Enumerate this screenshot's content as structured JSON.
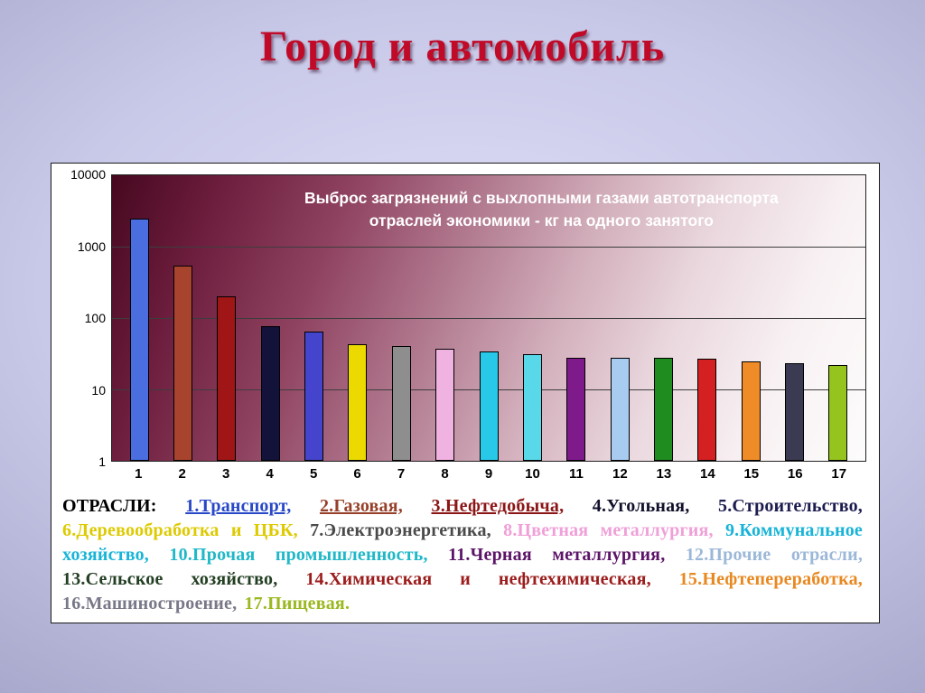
{
  "slide": {
    "title": "Город и автомобиль"
  },
  "chart_data": {
    "type": "bar",
    "title": "Выброс загрязнений с выхлопными газами автотранспорта\nотраслей экономики - кг на одного занятого",
    "xlabel": "",
    "ylabel": "",
    "y_scale": "log",
    "ylim": [
      1,
      10000
    ],
    "y_ticks": [
      "10000",
      "1000",
      "100",
      "10",
      "1"
    ],
    "grid": true,
    "legend_position": "below-as-text",
    "categories": [
      "1",
      "2",
      "3",
      "4",
      "5",
      "6",
      "7",
      "8",
      "9",
      "10",
      "11",
      "12",
      "13",
      "14",
      "15",
      "16",
      "17"
    ],
    "values": [
      2500,
      550,
      200,
      78,
      65,
      43,
      40,
      37,
      34,
      31,
      28,
      28,
      28,
      27,
      25,
      23,
      22
    ],
    "bar_colors": [
      "#4a6de0",
      "#a8442e",
      "#a01616",
      "#12123a",
      "#4444cc",
      "#ecd900",
      "#8e8e8e",
      "#f0b2e0",
      "#28c8e8",
      "#58d8e8",
      "#7f1a8a",
      "#a8ccf0",
      "#1e8c1e",
      "#d42020",
      "#f08c28",
      "#3a3a52",
      "#96c41e"
    ]
  },
  "legend": {
    "label": "ОТРАСЛИ:",
    "items": [
      {
        "text": "1.Транспорт,",
        "color": "#2848c8",
        "underline": true
      },
      {
        "text": "2.Газовая,",
        "color": "#96402a",
        "underline": true
      },
      {
        "text": "3.Нефтедобыча,",
        "color": "#8c1616",
        "underline": true
      },
      {
        "text": "4.Угольная,",
        "color": "#10102a",
        "underline": false
      },
      {
        "text": "5.Строительство,",
        "color": "#1c1c50",
        "underline": false
      },
      {
        "text": "6.Деревообработка и ЦБК,",
        "color": "#ddca00",
        "underline": false
      },
      {
        "text": "7.Электроэнергетика,",
        "color": "#4a4a4a",
        "underline": false
      },
      {
        "text": "8.Цветная металлургия,",
        "color": "#f0a0d8",
        "underline": false
      },
      {
        "text": "9.Коммунальное хозяйство,",
        "color": "#18b4d8",
        "underline": false
      },
      {
        "text": "10.Прочая промышленность,",
        "color": "#20b8c8",
        "underline": false
      },
      {
        "text": "11.Черная металлургия,",
        "color": "#5c1468",
        "underline": false
      },
      {
        "text": "12.Прочие отрасли,",
        "color": "#9cb8d8",
        "underline": false
      },
      {
        "text": "13.Сельское хозяйство,",
        "color": "#233f23",
        "underline": false
      },
      {
        "text": "14.Химическая и нефтехимическая,",
        "color": "#9c1c1c",
        "underline": false
      },
      {
        "text": "15.Нефтепереработка,",
        "color": "#e88820",
        "underline": false
      },
      {
        "text": "16.Машиностроение,",
        "color": "#787888",
        "underline": false
      },
      {
        "text": "17.Пищевая.",
        "color": "#9ab820",
        "underline": false
      }
    ]
  }
}
